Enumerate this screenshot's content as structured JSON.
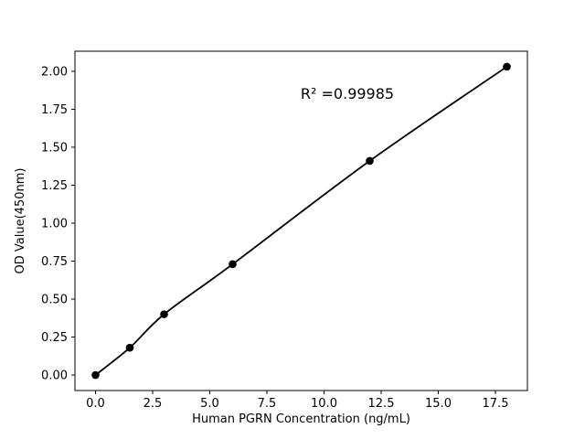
{
  "figure": {
    "background": "#ffffff"
  },
  "chart_data": {
    "type": "line",
    "x": [
      0.0,
      1.5,
      3.0,
      6.0,
      12.0,
      18.0
    ],
    "y": [
      0.0,
      0.18,
      0.4,
      0.73,
      1.41,
      2.03
    ],
    "series_name": "standard-curve",
    "title": "",
    "xlabel": "Human PGRN Concentration (ng/mL)",
    "ylabel": "OD Value(450nm)",
    "annotation": "R² =0.99985",
    "xticks": [
      0.0,
      2.5,
      5.0,
      7.5,
      10.0,
      12.5,
      15.0,
      17.5
    ],
    "xtick_labels": [
      "0.0",
      "2.5",
      "5.0",
      "7.5",
      "10.0",
      "12.5",
      "15.0",
      "17.5"
    ],
    "yticks": [
      0.0,
      0.25,
      0.5,
      0.75,
      1.0,
      1.25,
      1.5,
      1.75,
      2.0
    ],
    "ytick_labels": [
      "0.00",
      "0.25",
      "0.50",
      "0.75",
      "1.00",
      "1.25",
      "1.50",
      "1.75",
      "2.00"
    ],
    "xlim": [
      -0.9,
      18.9
    ],
    "ylim": [
      -0.102,
      2.132
    ],
    "grid": false,
    "legend": null,
    "line_color": "#000000",
    "marker": "circle",
    "marker_color": "#000000",
    "spine_color": "#000000"
  }
}
